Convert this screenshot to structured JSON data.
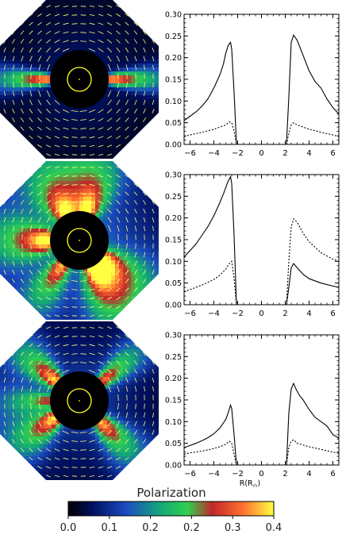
{
  "colors": {
    "colormap": [
      "#000000",
      "#001060",
      "#1a4cc0",
      "#14a878",
      "#30d050",
      "#c02828",
      "#ff7030",
      "#ffff40"
    ],
    "occulter": "#000000",
    "disk_circle": "#ffff20",
    "vector": "#ffff80",
    "line": "#000000"
  },
  "colorbar": {
    "title": "Polarization",
    "tick_labels": [
      "0.0",
      "0.1",
      "0.2",
      "0.2",
      "0.3",
      "0.4"
    ]
  },
  "chart_data": [
    {
      "type": "line",
      "xlabel": "",
      "ylabel": "",
      "xlim": [
        -6.5,
        6.5
      ],
      "ylim": [
        0,
        0.3
      ],
      "x_ticks": [
        -6,
        -4,
        -2,
        0,
        2,
        4,
        6
      ],
      "y_ticks": [
        "0.00",
        "0.05",
        "0.10",
        "0.15",
        "0.20",
        "0.25",
        "0.30"
      ],
      "series": [
        {
          "style": "solid",
          "x": [
            -6.5,
            -6,
            -5.5,
            -5,
            -4.5,
            -4,
            -3.5,
            -3.2,
            -3,
            -2.8,
            -2.6,
            -2.5,
            -2.3,
            -2.1
          ],
          "y": [
            0.055,
            0.065,
            0.075,
            0.088,
            0.105,
            0.13,
            0.16,
            0.185,
            0.21,
            0.228,
            0.235,
            0.22,
            0.12,
            0.0
          ],
          "x2": [
            2.1,
            2.3,
            2.5,
            2.7,
            3,
            3.5,
            4,
            4.5,
            5,
            5.5,
            6,
            6.5
          ],
          "y2": [
            0.0,
            0.11,
            0.235,
            0.252,
            0.24,
            0.205,
            0.17,
            0.145,
            0.13,
            0.105,
            0.085,
            0.07
          ]
        },
        {
          "style": "dotted",
          "x": [
            -6.5,
            -6,
            -5,
            -4,
            -3.5,
            -3,
            -2.7,
            -2.5,
            -2.3,
            -2.1
          ],
          "y": [
            0.018,
            0.022,
            0.028,
            0.035,
            0.04,
            0.045,
            0.052,
            0.05,
            0.03,
            0.0
          ],
          "x2": [
            2.1,
            2.3,
            2.5,
            2.7,
            3,
            4,
            5,
            6,
            6.5
          ],
          "y2": [
            0.0,
            0.025,
            0.045,
            0.05,
            0.045,
            0.035,
            0.028,
            0.022,
            0.018
          ]
        }
      ]
    },
    {
      "type": "line",
      "xlabel": "",
      "ylabel": "",
      "xlim": [
        -6.5,
        6.5
      ],
      "ylim": [
        0,
        0.3
      ],
      "x_ticks": [
        -6,
        -4,
        -2,
        0,
        2,
        4,
        6
      ],
      "y_ticks": [
        "0.00",
        "0.05",
        "0.10",
        "0.15",
        "0.20",
        "0.25",
        "0.30"
      ],
      "series": [
        {
          "style": "solid",
          "x": [
            -6.5,
            -6,
            -5.5,
            -5,
            -4.5,
            -4,
            -3.5,
            -3.2,
            -3,
            -2.8,
            -2.6,
            -2.5,
            -2.3,
            -2.1
          ],
          "y": [
            0.11,
            0.125,
            0.14,
            0.16,
            0.18,
            0.205,
            0.235,
            0.255,
            0.27,
            0.285,
            0.295,
            0.28,
            0.16,
            0.0
          ],
          "x2": [
            2.1,
            2.3,
            2.5,
            2.7,
            3,
            3.5,
            4,
            5,
            6,
            6.5
          ],
          "y2": [
            0.0,
            0.04,
            0.085,
            0.095,
            0.085,
            0.07,
            0.06,
            0.05,
            0.043,
            0.04
          ]
        },
        {
          "style": "dotted",
          "x": [
            -6.5,
            -6,
            -5,
            -4,
            -3.5,
            -3,
            -2.7,
            -2.5,
            -2.3,
            -2.1
          ],
          "y": [
            0.03,
            0.035,
            0.045,
            0.058,
            0.068,
            0.082,
            0.095,
            0.1,
            0.06,
            0.0
          ],
          "x2": [
            2.1,
            2.3,
            2.5,
            2.7,
            3,
            3.5,
            4,
            5,
            6,
            6.5
          ],
          "y2": [
            0.0,
            0.1,
            0.18,
            0.198,
            0.19,
            0.165,
            0.145,
            0.12,
            0.105,
            0.1
          ]
        }
      ]
    },
    {
      "type": "line",
      "xlabel": "R(R",
      "xlabel_sub": "⊙",
      "xlabel_close": ")",
      "ylabel": "",
      "xlim": [
        -6.5,
        6.5
      ],
      "ylim": [
        0,
        0.3
      ],
      "x_ticks": [
        -6,
        -4,
        -2,
        0,
        2,
        4,
        6
      ],
      "y_ticks": [
        "0.00",
        "0.05",
        "0.10",
        "0.15",
        "0.20",
        "0.25",
        "0.30"
      ],
      "series": [
        {
          "style": "solid",
          "x": [
            -6.5,
            -6,
            -5.5,
            -5,
            -4.5,
            -4,
            -3.5,
            -3,
            -2.8,
            -2.6,
            -2.5,
            -2.3,
            -2.1
          ],
          "y": [
            0.04,
            0.045,
            0.05,
            0.056,
            0.063,
            0.072,
            0.085,
            0.105,
            0.12,
            0.138,
            0.13,
            0.07,
            0.0
          ],
          "x2": [
            2.1,
            2.3,
            2.5,
            2.7,
            2.9,
            3.2,
            3.5,
            4,
            4.5,
            5,
            5.5,
            6,
            6.5
          ],
          "y2": [
            0.0,
            0.12,
            0.175,
            0.188,
            0.175,
            0.16,
            0.15,
            0.128,
            0.11,
            0.1,
            0.09,
            0.07,
            0.062
          ]
        },
        {
          "style": "dotted",
          "x": [
            -6.5,
            -6,
            -5,
            -4,
            -3.5,
            -3,
            -2.7,
            -2.5,
            -2.3,
            -2.1
          ],
          "y": [
            0.025,
            0.028,
            0.032,
            0.038,
            0.042,
            0.048,
            0.055,
            0.05,
            0.025,
            0.0
          ],
          "x2": [
            2.1,
            2.3,
            2.5,
            2.7,
            3,
            4,
            5,
            6,
            6.5
          ],
          "y2": [
            0.0,
            0.04,
            0.055,
            0.058,
            0.05,
            0.042,
            0.036,
            0.03,
            0.027
          ]
        }
      ]
    }
  ]
}
